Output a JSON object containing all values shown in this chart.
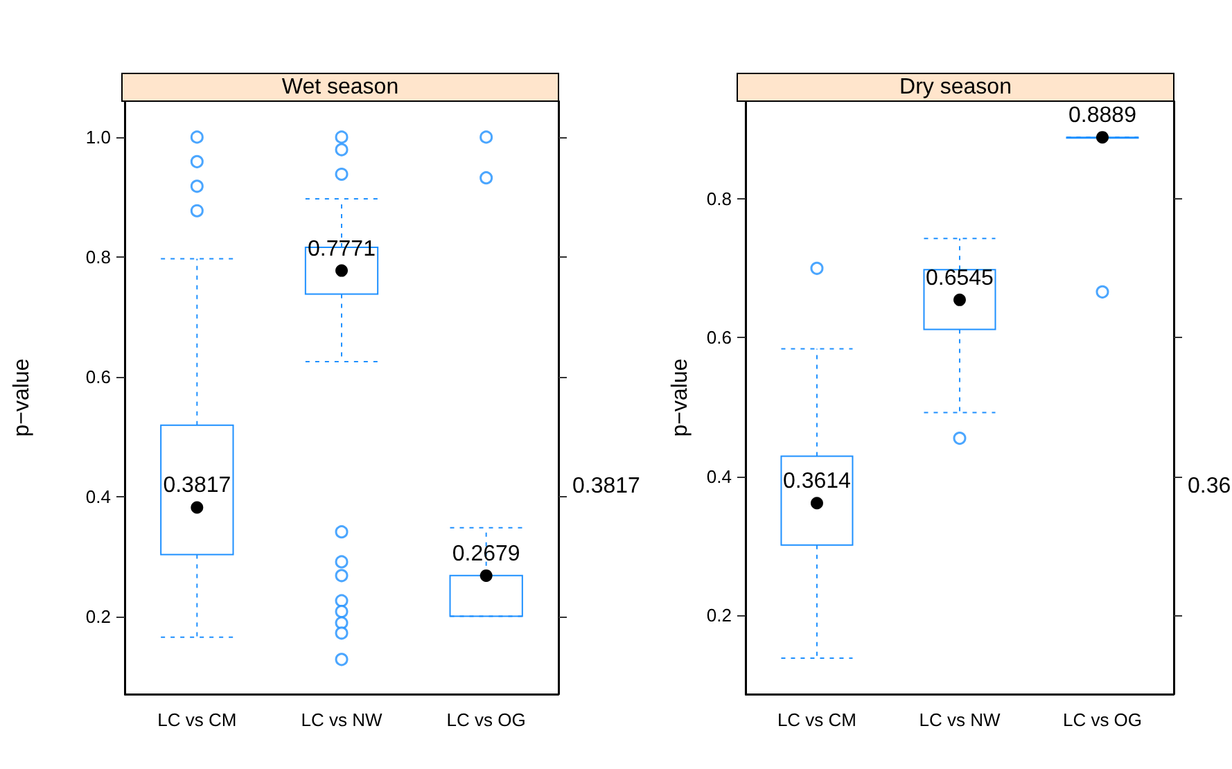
{
  "chart_data": [
    {
      "type": "box",
      "title": "Wet season",
      "ylabel": "p−value",
      "categories": [
        "LC vs CM",
        "LC vs NW",
        "LC vs OG"
      ],
      "ylim": [
        0.07,
        1.06
      ],
      "yticks": [
        0.2,
        0.4,
        0.6,
        0.8,
        {
          "value": 1,
          "label": "1.0"
        }
      ],
      "data_labels": true,
      "series": [
        {
          "color": "#1e90ff",
          "boxes": [
            {
              "low": 0.165,
              "q1": 0.303,
              "q3": 0.519,
              "high": 0.797,
              "outliers": [
                1.0,
                0.959,
                0.918,
                0.877
              ]
            },
            {
              "low": 0.625,
              "q1": 0.738,
              "q3": 0.816,
              "high": 0.897,
              "outliers": [
                1.0,
                0.979,
                0.938,
                0.341,
                0.291,
                0.268,
                0.226,
                0.208,
                0.189,
                0.172,
                0.128
              ]
            },
            {
              "low": 0.2,
              "q1": 0.2,
              "q3": 0.268,
              "high": 0.348,
              "outliers": [
                1.0,
                0.932
              ]
            }
          ]
        },
        {
          "type": "scatter",
          "color": "#000000",
          "x": [
            "LC vs CM",
            "LC vs NW",
            "LC vs OG"
          ],
          "values": [
            0.3817,
            0.7771,
            0.2679
          ]
        }
      ],
      "annotations": [
        "0.3817"
      ]
    },
    {
      "type": "box",
      "title": "Dry season",
      "ylabel": "p−value",
      "categories": [
        "LC vs CM",
        "LC vs NW",
        "LC vs OG"
      ],
      "ylim": [
        0.086,
        0.941
      ],
      "yticks": [
        0.2,
        0.4,
        0.6,
        0.8
      ],
      "data_labels": true,
      "series": [
        {
          "color": "#1e90ff",
          "boxes": [
            {
              "low": 0.138,
              "q1": 0.301,
              "q3": 0.429,
              "high": 0.584,
              "outliers": [
                0.7
              ]
            },
            {
              "low": 0.492,
              "q1": 0.612,
              "q3": 0.698,
              "high": 0.743,
              "outliers": [
                0.455
              ]
            },
            {
              "low": 0.8889,
              "q1": 0.8889,
              "q3": 0.8889,
              "high": 0.8889,
              "outliers": [
                0.666
              ]
            }
          ]
        },
        {
          "type": "scatter",
          "color": "#000000",
          "x": [
            "LC vs CM",
            "LC vs NW",
            "LC vs OG"
          ],
          "values": [
            0.3614,
            0.6545,
            0.8889
          ]
        }
      ],
      "annotations": [
        "0.36"
      ]
    }
  ]
}
